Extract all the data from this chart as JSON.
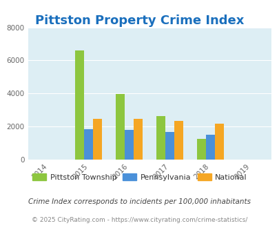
{
  "title": "Pittston Property Crime Index",
  "years": [
    2014,
    2015,
    2016,
    2017,
    2018,
    2019
  ],
  "bar_years": [
    2015,
    2016,
    2017,
    2018
  ],
  "pittston": [
    6620,
    3950,
    2620,
    1250
  ],
  "pennsylvania": [
    1820,
    1780,
    1670,
    1520
  ],
  "national": [
    2470,
    2470,
    2360,
    2190
  ],
  "colors": {
    "pittston": "#8dc63f",
    "pennsylvania": "#4a90d9",
    "national": "#f5a623"
  },
  "ylim": [
    0,
    8000
  ],
  "yticks": [
    0,
    2000,
    4000,
    6000,
    8000
  ],
  "background_color": "#ddeef4",
  "title_color": "#1a6fbd",
  "legend_labels": [
    "Pittston Township",
    "Pennsylvania",
    "National"
  ],
  "legend_text_color": "#333333",
  "footnote1": "Crime Index corresponds to incidents per 100,000 inhabitants",
  "footnote2": "© 2025 CityRating.com - https://www.cityrating.com/crime-statistics/",
  "footnote1_color": "#444444",
  "footnote2_color": "#888888",
  "title_fontsize": 13,
  "bar_width": 0.22,
  "xlim": [
    2013.5,
    2019.5
  ]
}
